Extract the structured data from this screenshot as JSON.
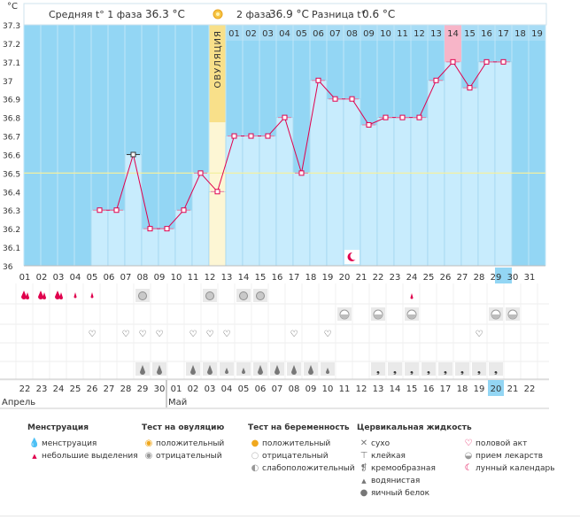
{
  "chart_data": {
    "type": "bar",
    "ylabel": "°C",
    "ylim": [
      36.0,
      37.3
    ],
    "yticks": [
      "37.3",
      "37.2",
      "37.1",
      "37",
      "36.9",
      "36.8",
      "36.7",
      "36.6",
      "36.5",
      "36.4",
      "36.3",
      "36.2",
      "36.1",
      "36"
    ],
    "coverline": 36.5,
    "ovulation_day_index": 11,
    "ovulation_label": "ОВУЛЯЦИЯ",
    "header": {
      "phase1": "Средняя t° 1 фаза",
      "phase1_value": "36.3 °C",
      "phase2": "2 фаза",
      "phase2_value": "36.9 °C",
      "diff": "Разница t°",
      "diff_value": "0.6 °C"
    },
    "cycle_days": [
      "01",
      "02",
      "03",
      "04",
      "05",
      "06",
      "07",
      "08",
      "09",
      "10",
      "11",
      "12",
      "13",
      "14",
      "15",
      "16",
      "17",
      "18",
      "19",
      "20",
      "21",
      "22",
      "23",
      "24",
      "25",
      "26",
      "27",
      "28",
      "29",
      "30",
      "31"
    ],
    "phase2_days": [
      "01",
      "02",
      "03",
      "04",
      "05",
      "06",
      "07",
      "08",
      "09",
      "10",
      "11",
      "12",
      "13",
      "14",
      "15",
      "16",
      "17",
      "18",
      "19"
    ],
    "highlight_cycle_day": "29",
    "highlight_phase2_day": "14",
    "temperatures": [
      null,
      null,
      null,
      null,
      36.3,
      36.3,
      36.6,
      36.2,
      36.2,
      36.3,
      36.5,
      36.4,
      36.7,
      36.7,
      36.7,
      36.8,
      36.5,
      37.0,
      36.9,
      36.9,
      36.76,
      36.8,
      36.8,
      36.8,
      37.0,
      37.1,
      36.96,
      37.1,
      37.1,
      null,
      null
    ],
    "temperature_labels": [
      "",
      "",
      "",
      "",
      "36.3",
      "36.3",
      "36.6",
      "36.2",
      "36.2",
      "36.3",
      "36.5",
      "36.4",
      "36.7",
      "36.7",
      "36.7",
      "36.8",
      "36.5",
      "37",
      "36.9",
      "36.9",
      "36.76",
      "36.8",
      "36.8",
      "36.8",
      "37",
      "37.1",
      "36.96",
      "37.1",
      "37.1",
      "",
      ""
    ],
    "dates": [
      "22",
      "23",
      "24",
      "25",
      "26",
      "27",
      "28",
      "29",
      "30",
      "01",
      "02",
      "03",
      "04",
      "05",
      "06",
      "07",
      "08",
      "09",
      "10",
      "11",
      "12",
      "13",
      "14",
      "15",
      "16",
      "17",
      "18",
      "19",
      "20",
      "21",
      "22"
    ],
    "red_dates": [
      "26",
      "27",
      "03",
      "04",
      "10",
      "11",
      "17",
      "18"
    ],
    "highlight_date_index": 28,
    "month_labels": [
      "Апрель",
      "Май"
    ],
    "month_start_indices": [
      0,
      9
    ],
    "moon_day_index": 19
  },
  "rows": {
    "menstruation": [
      "big",
      "big",
      "big",
      "small",
      "small",
      "",
      "",
      "",
      "",
      "",
      "",
      "",
      "",
      "",
      "",
      "",
      "",
      "",
      "",
      "",
      "",
      "",
      "",
      "",
      "",
      "",
      "",
      "",
      "",
      "",
      ""
    ],
    "ovulation_test": [
      "",
      "",
      "",
      "",
      "",
      "",
      "",
      "neg",
      "",
      "",
      "",
      "neg",
      "",
      "neg",
      "neg",
      "",
      "",
      "",
      "",
      "",
      "",
      "",
      "",
      "small",
      "",
      "",
      "",
      "",
      "",
      "",
      ""
    ],
    "pregnancy_test": [
      "",
      "",
      "",
      "",
      "",
      "",
      "",
      "",
      "",
      "",
      "",
      "",
      "",
      "",
      "",
      "",
      "",
      "",
      "",
      "weak",
      "",
      "weak",
      "",
      "weak",
      "",
      "",
      "",
      "",
      "weak",
      "weak",
      ""
    ],
    "intercourse": [
      "",
      "",
      "",
      "",
      "heart",
      "",
      "heart",
      "heart",
      "heart",
      "",
      "heart",
      "heart",
      "heart",
      "",
      "",
      "",
      "heart",
      "",
      "heart",
      "",
      "",
      "",
      "",
      "",
      "",
      "",
      "",
      "heart",
      "",
      "",
      ""
    ],
    "fluid": [
      "",
      "",
      "",
      "",
      "",
      "",
      "",
      "drop",
      "drop",
      "",
      "drop",
      "drop",
      "small",
      "small",
      "drop",
      "drop",
      "drop",
      "drop",
      "small",
      "",
      "",
      "comma",
      "comma",
      "comma",
      "comma",
      "comma",
      "comma",
      "comma",
      "comma",
      "",
      ""
    ]
  },
  "legend": {
    "menstruation_title": "Менструация",
    "menstruation_items": [
      "менструация",
      "небольшие выделения"
    ],
    "ovtest_title": "Тест на овуляцию",
    "ovtest_items": [
      "положительный",
      "отрицательный"
    ],
    "pregtest_title": "Тест на беременность",
    "pregtest_items": [
      "положительный",
      "отрицательный",
      "слабоположительный"
    ],
    "fluid_title": "Цервикальная жидкость",
    "fluid_items": [
      "сухо",
      "клейкая",
      "кремообразная",
      "водянистая",
      "яичный белок"
    ],
    "other_items": [
      "половой акт",
      "прием лекарств",
      "лунный календарь"
    ]
  },
  "colors": {
    "bg_blue": "#93d6f4",
    "bar_fill": "#c8ecfd",
    "bar_border": "#9bd1ec",
    "line": "#e0004d",
    "ovulation": "#f8e08a",
    "ovulation_light": "#fdf6d4",
    "highlight_pink": "#f7b5c8",
    "highlight_blue": "#93d6f4"
  }
}
